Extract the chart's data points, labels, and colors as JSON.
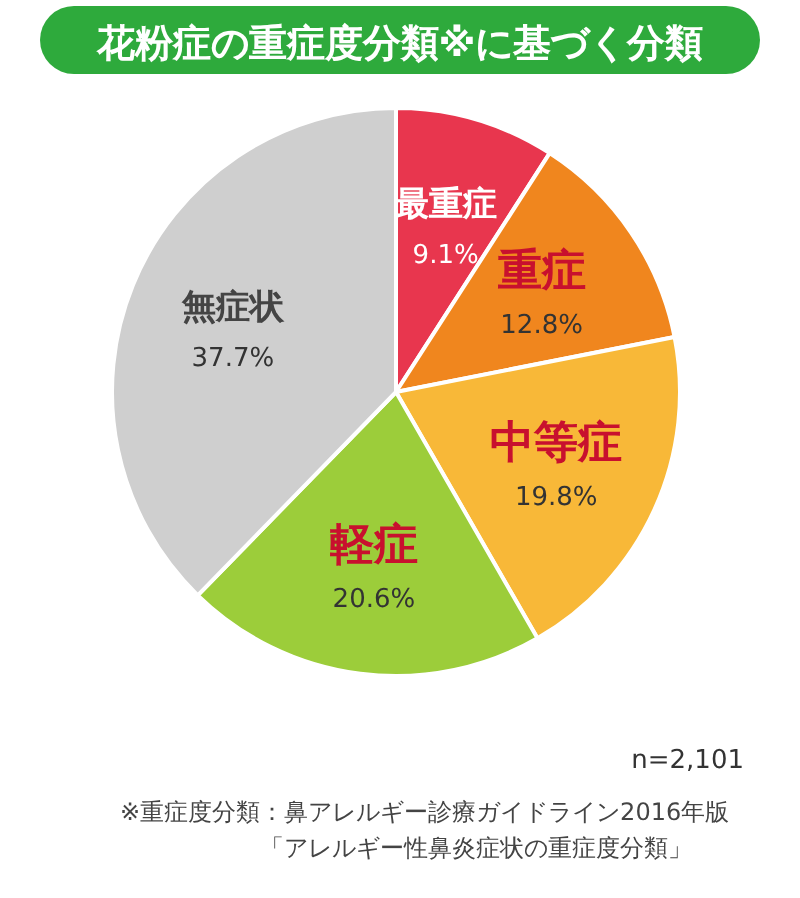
{
  "chart_data": {
    "type": "pie",
    "title": "花粉症の重症度分類※に基づく分類",
    "categories": [
      "最重症",
      "重症",
      "中等症",
      "軽症",
      "無症状"
    ],
    "values": [
      9.1,
      12.8,
      19.8,
      20.6,
      37.7
    ],
    "colors": [
      "#e8364e",
      "#f0861e",
      "#f8b838",
      "#9ccd3a",
      "#cfcfcf"
    ],
    "value_labels": [
      "9.1%",
      "12.8%",
      "19.8%",
      "20.6%",
      "37.7%"
    ],
    "annotations": [
      "n=2,101",
      "※重症度分類：鼻アレルギー診療ガイドライン2016年版",
      "「アレルギー性鼻炎症状の重症度分類」"
    ]
  }
}
